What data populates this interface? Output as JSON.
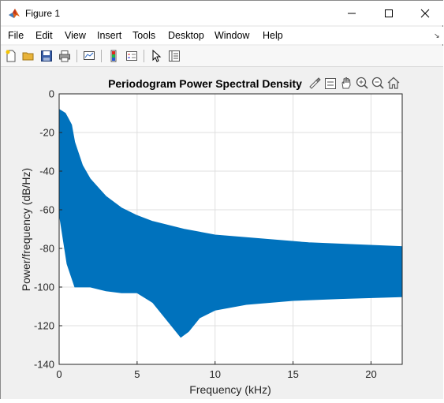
{
  "window": {
    "title": "Figure 1"
  },
  "menu": [
    "File",
    "Edit",
    "View",
    "Insert",
    "Tools",
    "Desktop",
    "Window",
    "Help"
  ],
  "chart_data": {
    "type": "line",
    "title": "Periodogram Power Spectral Density",
    "xlabel": "Frequency (kHz)",
    "ylabel": "Power/frequency (dB/Hz)",
    "xlim": [
      0,
      22
    ],
    "ylim": [
      -140,
      0
    ],
    "xticks": [
      0,
      5,
      10,
      15,
      20
    ],
    "yticks": [
      0,
      -20,
      -40,
      -60,
      -80,
      -100,
      -120,
      -140
    ],
    "grid": true,
    "color": "#0072BD",
    "series": [
      {
        "upper": [
          [
            0,
            -8
          ],
          [
            0.4,
            -10
          ],
          [
            0.6,
            -13
          ],
          [
            0.8,
            -16
          ],
          [
            1,
            -25
          ],
          [
            1.5,
            -37
          ],
          [
            2,
            -44
          ],
          [
            3,
            -53
          ],
          [
            4,
            -59
          ],
          [
            5,
            -63
          ],
          [
            6,
            -66
          ],
          [
            8,
            -70
          ],
          [
            10,
            -73
          ],
          [
            13,
            -75
          ],
          [
            16,
            -77
          ],
          [
            19,
            -78
          ],
          [
            22,
            -79
          ]
        ],
        "lower": [
          [
            0,
            -62
          ],
          [
            0.5,
            -88
          ],
          [
            1,
            -100
          ],
          [
            1.5,
            -100
          ],
          [
            2,
            -100
          ],
          [
            3,
            -102
          ],
          [
            4,
            -103
          ],
          [
            5,
            -103
          ],
          [
            6,
            -108
          ],
          [
            7,
            -118
          ],
          [
            7.8,
            -126
          ],
          [
            8.3,
            -123
          ],
          [
            9,
            -116
          ],
          [
            10,
            -112
          ],
          [
            12,
            -109
          ],
          [
            15,
            -107
          ],
          [
            18,
            -106
          ],
          [
            22,
            -105
          ]
        ]
      }
    ]
  }
}
